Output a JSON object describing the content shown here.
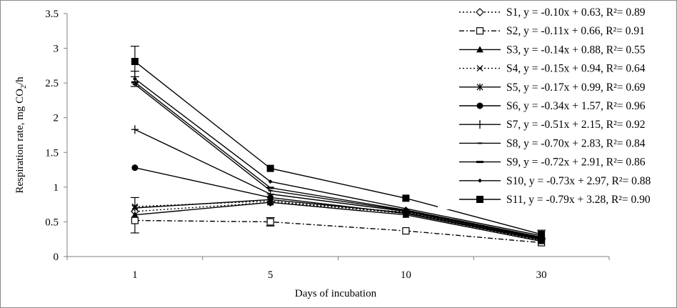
{
  "chart_data": {
    "type": "line",
    "title": "",
    "xlabel": "Days of incubation",
    "ylabel": "Respiration rate, mg CO2/h",
    "ylabel_parts": {
      "main": "Respiration rate, mg CO",
      "sub": "2",
      "tail": "/h"
    },
    "categories": [
      "1",
      "5",
      "10",
      "30"
    ],
    "ylim": [
      0,
      3.5
    ],
    "yticks": [
      "0",
      "0.5",
      "1",
      "1.5",
      "2",
      "2.5",
      "3",
      "3.5"
    ],
    "ytick_values": [
      0,
      0.5,
      1,
      1.5,
      2,
      2.5,
      3,
      3.5
    ],
    "grid": false,
    "legend_position": "top-right",
    "series": [
      {
        "name": "S1",
        "label": "S1, y = -0.10x + 0.63, R²= 0.89",
        "marker": "diamond-open",
        "dash": "dotted",
        "values": [
          0.65,
          0.78,
          0.64,
          0.24
        ]
      },
      {
        "name": "S2",
        "label": "S2, y = -0.11x + 0.66, R²= 0.91",
        "marker": "square-open",
        "dash": "dash-dot",
        "values": [
          0.52,
          0.5,
          0.37,
          0.2
        ]
      },
      {
        "name": "S3",
        "label": "S3, y = -0.14x + 0.88, R²= 0.55",
        "marker": "triangle",
        "dash": "solid",
        "values": [
          0.6,
          0.78,
          0.6,
          0.22
        ]
      },
      {
        "name": "S4",
        "label": "S4, y = -0.15x + 0.94, R²= 0.64",
        "marker": "x",
        "dash": "dotted",
        "values": [
          0.72,
          0.8,
          0.62,
          0.23
        ]
      },
      {
        "name": "S5",
        "label": "S5, y = -0.17x + 0.99, R²= 0.69",
        "marker": "asterisk",
        "dash": "solid",
        "values": [
          0.7,
          0.82,
          0.63,
          0.25
        ]
      },
      {
        "name": "S6",
        "label": "S6, y = -0.34x + 1.57, R²= 0.96",
        "marker": "circle",
        "dash": "solid",
        "values": [
          1.28,
          0.85,
          0.62,
          0.24
        ]
      },
      {
        "name": "S7",
        "label": "S7, y = -0.51x + 2.15, R²= 0.92",
        "marker": "plus",
        "dash": "solid",
        "values": [
          1.83,
          0.9,
          0.65,
          0.26
        ]
      },
      {
        "name": "S8",
        "label": "S8, y = -0.70x + 2.83, R²= 0.84",
        "marker": "dash",
        "dash": "solid",
        "values": [
          2.48,
          0.95,
          0.66,
          0.27
        ]
      },
      {
        "name": "S9",
        "label": "S9, y = -0.72x + 2.91, R²= 0.86",
        "marker": "bar",
        "dash": "solid",
        "values": [
          2.51,
          0.99,
          0.67,
          0.28
        ]
      },
      {
        "name": "S10",
        "label": "S10, y = -0.73x + 2.97, R²= 0.88",
        "marker": "small-diamond",
        "dash": "solid",
        "values": [
          2.56,
          1.08,
          0.69,
          0.3
        ]
      },
      {
        "name": "S11",
        "label": "S11, y = -0.79x + 3.28, R²= 0.90",
        "marker": "square",
        "dash": "solid",
        "values": [
          2.81,
          1.27,
          0.84,
          0.32
        ]
      }
    ],
    "error_bars": [
      {
        "series": "S11",
        "category": "1",
        "low": 2.59,
        "high": 3.03
      },
      {
        "series": "S10",
        "category": "1",
        "low": 2.45,
        "high": 2.67
      },
      {
        "series": "S3",
        "category": "1",
        "low": 0.34,
        "high": 0.85
      },
      {
        "series": "S2",
        "category": "5",
        "low": 0.44,
        "high": 0.56
      },
      {
        "series": "S11",
        "category": "30",
        "low": 0.26,
        "high": 0.38
      }
    ]
  }
}
